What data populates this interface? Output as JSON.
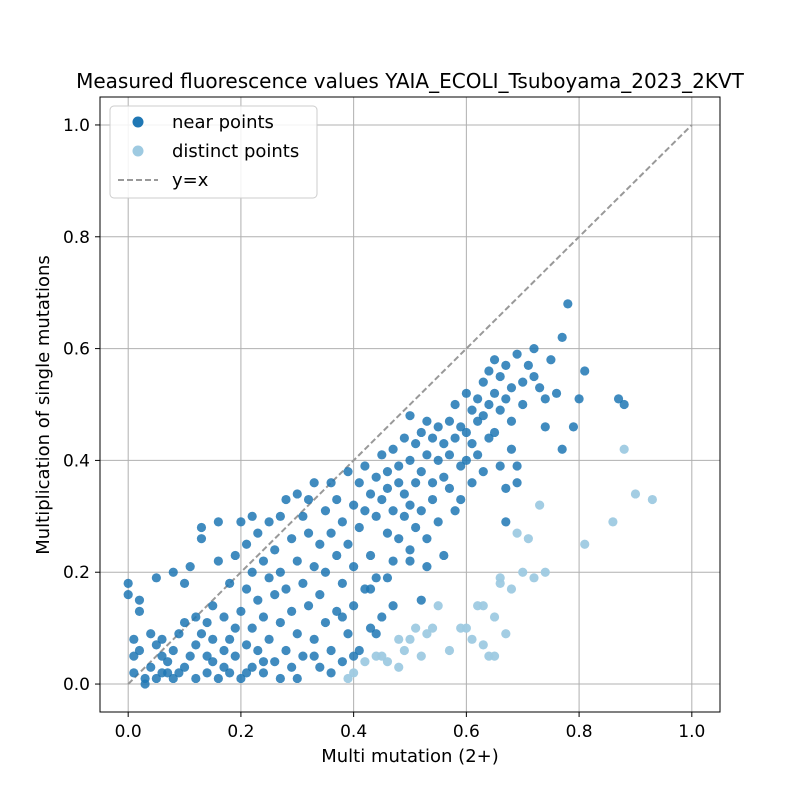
{
  "chart_data": {
    "type": "scatter",
    "title": "Measured fluorescence values YAIA_ECOLI_Tsuboyama_2023_2KVT",
    "xlabel": "Multi mutation (2+)",
    "ylabel": "Multiplication of single mutations",
    "xlim": [
      -0.05,
      1.05
    ],
    "ylim": [
      -0.05,
      1.05
    ],
    "xticks": [
      "0.0",
      "0.2",
      "0.4",
      "0.6",
      "0.8",
      "1.0"
    ],
    "yticks": [
      "0.0",
      "0.2",
      "0.4",
      "0.6",
      "0.8",
      "1.0"
    ],
    "grid": true,
    "legend_position": "top-left",
    "reference_line": {
      "name": "y=x",
      "color": "#999999",
      "style": "dashed"
    },
    "series": [
      {
        "name": "near points",
        "color": "#1f77b4",
        "points": [
          [
            0.0,
            0.18
          ],
          [
            0.0,
            0.16
          ],
          [
            0.01,
            0.08
          ],
          [
            0.01,
            0.02
          ],
          [
            0.01,
            0.05
          ],
          [
            0.02,
            0.13
          ],
          [
            0.02,
            0.15
          ],
          [
            0.02,
            0.06
          ],
          [
            0.03,
            0.01
          ],
          [
            0.03,
            0.0
          ],
          [
            0.04,
            0.09
          ],
          [
            0.04,
            0.03
          ],
          [
            0.05,
            0.19
          ],
          [
            0.05,
            0.07
          ],
          [
            0.05,
            0.01
          ],
          [
            0.06,
            0.05
          ],
          [
            0.06,
            0.08
          ],
          [
            0.06,
            0.02
          ],
          [
            0.07,
            0.02
          ],
          [
            0.07,
            0.04
          ],
          [
            0.08,
            0.01
          ],
          [
            0.08,
            0.2
          ],
          [
            0.08,
            0.06
          ],
          [
            0.09,
            0.09
          ],
          [
            0.09,
            0.02
          ],
          [
            0.1,
            0.18
          ],
          [
            0.1,
            0.11
          ],
          [
            0.1,
            0.03
          ],
          [
            0.11,
            0.05
          ],
          [
            0.11,
            0.21
          ],
          [
            0.12,
            0.12
          ],
          [
            0.12,
            0.01
          ],
          [
            0.12,
            0.07
          ],
          [
            0.13,
            0.28
          ],
          [
            0.13,
            0.26
          ],
          [
            0.13,
            0.09
          ],
          [
            0.14,
            0.02
          ],
          [
            0.14,
            0.05
          ],
          [
            0.14,
            0.11
          ],
          [
            0.15,
            0.14
          ],
          [
            0.15,
            0.04
          ],
          [
            0.15,
            0.08
          ],
          [
            0.16,
            0.22
          ],
          [
            0.16,
            0.29
          ],
          [
            0.16,
            0.01
          ],
          [
            0.17,
            0.06
          ],
          [
            0.17,
            0.12
          ],
          [
            0.17,
            0.03
          ],
          [
            0.18,
            0.08
          ],
          [
            0.18,
            0.18
          ],
          [
            0.18,
            0.02
          ],
          [
            0.19,
            0.23
          ],
          [
            0.19,
            0.1
          ],
          [
            0.19,
            0.05
          ],
          [
            0.2,
            0.29
          ],
          [
            0.2,
            0.13
          ],
          [
            0.2,
            0.01
          ],
          [
            0.21,
            0.17
          ],
          [
            0.21,
            0.07
          ],
          [
            0.21,
            0.25
          ],
          [
            0.22,
            0.3
          ],
          [
            0.22,
            0.2
          ],
          [
            0.22,
            0.1
          ],
          [
            0.22,
            0.03
          ],
          [
            0.23,
            0.27
          ],
          [
            0.23,
            0.15
          ],
          [
            0.23,
            0.06
          ],
          [
            0.24,
            0.22
          ],
          [
            0.24,
            0.12
          ],
          [
            0.24,
            0.02
          ],
          [
            0.25,
            0.19
          ],
          [
            0.25,
            0.29
          ],
          [
            0.25,
            0.08
          ],
          [
            0.26,
            0.16
          ],
          [
            0.26,
            0.24
          ],
          [
            0.26,
            0.04
          ],
          [
            0.27,
            0.3
          ],
          [
            0.27,
            0.11
          ],
          [
            0.27,
            0.2
          ],
          [
            0.28,
            0.33
          ],
          [
            0.28,
            0.06
          ],
          [
            0.28,
            0.17
          ],
          [
            0.29,
            0.26
          ],
          [
            0.29,
            0.13
          ],
          [
            0.29,
            0.03
          ],
          [
            0.3,
            0.34
          ],
          [
            0.3,
            0.22
          ],
          [
            0.3,
            0.09
          ],
          [
            0.31,
            0.3
          ],
          [
            0.31,
            0.18
          ],
          [
            0.31,
            0.05
          ],
          [
            0.32,
            0.27
          ],
          [
            0.32,
            0.14
          ],
          [
            0.32,
            0.33
          ],
          [
            0.33,
            0.36
          ],
          [
            0.33,
            0.21
          ],
          [
            0.33,
            0.08
          ],
          [
            0.34,
            0.25
          ],
          [
            0.34,
            0.16
          ],
          [
            0.34,
            0.03
          ],
          [
            0.35,
            0.31
          ],
          [
            0.35,
            0.2
          ],
          [
            0.35,
            0.11
          ],
          [
            0.36,
            0.36
          ],
          [
            0.36,
            0.27
          ],
          [
            0.36,
            0.06
          ],
          [
            0.37,
            0.23
          ],
          [
            0.37,
            0.33
          ],
          [
            0.37,
            0.13
          ],
          [
            0.38,
            0.29
          ],
          [
            0.38,
            0.18
          ],
          [
            0.38,
            0.04
          ],
          [
            0.39,
            0.38
          ],
          [
            0.39,
            0.25
          ],
          [
            0.39,
            0.09
          ],
          [
            0.4,
            0.32
          ],
          [
            0.4,
            0.21
          ],
          [
            0.4,
            0.14
          ],
          [
            0.41,
            0.36
          ],
          [
            0.41,
            0.28
          ],
          [
            0.41,
            0.06
          ],
          [
            0.42,
            0.39
          ],
          [
            0.42,
            0.31
          ],
          [
            0.42,
            0.17
          ],
          [
            0.43,
            0.34
          ],
          [
            0.43,
            0.23
          ],
          [
            0.43,
            0.1
          ],
          [
            0.44,
            0.37
          ],
          [
            0.44,
            0.3
          ],
          [
            0.44,
            0.19
          ],
          [
            0.45,
            0.41
          ],
          [
            0.45,
            0.33
          ],
          [
            0.45,
            0.12
          ],
          [
            0.46,
            0.38
          ],
          [
            0.46,
            0.27
          ],
          [
            0.46,
            0.35
          ],
          [
            0.47,
            0.42
          ],
          [
            0.47,
            0.31
          ],
          [
            0.47,
            0.22
          ],
          [
            0.48,
            0.39
          ],
          [
            0.48,
            0.36
          ],
          [
            0.48,
            0.26
          ],
          [
            0.49,
            0.44
          ],
          [
            0.49,
            0.34
          ],
          [
            0.49,
            0.3
          ],
          [
            0.5,
            0.48
          ],
          [
            0.5,
            0.4
          ],
          [
            0.5,
            0.32
          ],
          [
            0.5,
            0.24
          ],
          [
            0.51,
            0.43
          ],
          [
            0.51,
            0.36
          ],
          [
            0.51,
            0.28
          ],
          [
            0.52,
            0.45
          ],
          [
            0.52,
            0.38
          ],
          [
            0.52,
            0.31
          ],
          [
            0.53,
            0.47
          ],
          [
            0.53,
            0.41
          ],
          [
            0.53,
            0.26
          ],
          [
            0.54,
            0.44
          ],
          [
            0.54,
            0.36
          ],
          [
            0.54,
            0.33
          ],
          [
            0.55,
            0.46
          ],
          [
            0.55,
            0.4
          ],
          [
            0.55,
            0.29
          ],
          [
            0.56,
            0.43
          ],
          [
            0.56,
            0.37
          ],
          [
            0.56,
            0.23
          ],
          [
            0.57,
            0.47
          ],
          [
            0.57,
            0.41
          ],
          [
            0.57,
            0.35
          ],
          [
            0.58,
            0.5
          ],
          [
            0.58,
            0.44
          ],
          [
            0.58,
            0.31
          ],
          [
            0.59,
            0.46
          ],
          [
            0.59,
            0.39
          ],
          [
            0.59,
            0.33
          ],
          [
            0.6,
            0.52
          ],
          [
            0.6,
            0.45
          ],
          [
            0.6,
            0.4
          ],
          [
            0.61,
            0.49
          ],
          [
            0.61,
            0.43
          ],
          [
            0.61,
            0.36
          ],
          [
            0.62,
            0.51
          ],
          [
            0.62,
            0.47
          ],
          [
            0.62,
            0.41
          ],
          [
            0.63,
            0.54
          ],
          [
            0.63,
            0.48
          ],
          [
            0.63,
            0.38
          ],
          [
            0.64,
            0.56
          ],
          [
            0.64,
            0.5
          ],
          [
            0.64,
            0.44
          ],
          [
            0.65,
            0.58
          ],
          [
            0.65,
            0.52
          ],
          [
            0.65,
            0.45
          ],
          [
            0.66,
            0.55
          ],
          [
            0.66,
            0.49
          ],
          [
            0.66,
            0.39
          ],
          [
            0.67,
            0.57
          ],
          [
            0.67,
            0.51
          ],
          [
            0.67,
            0.35
          ],
          [
            0.68,
            0.53
          ],
          [
            0.68,
            0.47
          ],
          [
            0.68,
            0.42
          ],
          [
            0.69,
            0.59
          ],
          [
            0.69,
            0.36
          ],
          [
            0.7,
            0.54
          ],
          [
            0.7,
            0.5
          ],
          [
            0.71,
            0.57
          ],
          [
            0.72,
            0.6
          ],
          [
            0.72,
            0.55
          ],
          [
            0.73,
            0.53
          ],
          [
            0.74,
            0.51
          ],
          [
            0.74,
            0.46
          ],
          [
            0.75,
            0.58
          ],
          [
            0.76,
            0.52
          ],
          [
            0.77,
            0.62
          ],
          [
            0.77,
            0.42
          ],
          [
            0.78,
            0.68
          ],
          [
            0.79,
            0.46
          ],
          [
            0.8,
            0.51
          ],
          [
            0.81,
            0.56
          ],
          [
            0.87,
            0.51
          ],
          [
            0.88,
            0.5
          ],
          [
            0.67,
            0.29
          ],
          [
            0.69,
            0.39
          ],
          [
            0.5,
            0.22
          ],
          [
            0.46,
            0.19
          ],
          [
            0.43,
            0.17
          ],
          [
            0.47,
            0.14
          ],
          [
            0.44,
            0.09
          ],
          [
            0.38,
            0.12
          ],
          [
            0.4,
            0.05
          ],
          [
            0.36,
            0.02
          ],
          [
            0.33,
            0.05
          ],
          [
            0.3,
            0.01
          ],
          [
            0.27,
            0.01
          ],
          [
            0.24,
            0.04
          ],
          [
            0.21,
            0.02
          ],
          [
            0.53,
            0.21
          ],
          [
            0.52,
            0.15
          ]
        ]
      },
      {
        "name": "distinct points",
        "color": "#9ecae1",
        "points": [
          [
            0.39,
            0.01
          ],
          [
            0.4,
            0.02
          ],
          [
            0.42,
            0.04
          ],
          [
            0.44,
            0.05
          ],
          [
            0.46,
            0.04
          ],
          [
            0.48,
            0.03
          ],
          [
            0.49,
            0.06
          ],
          [
            0.5,
            0.08
          ],
          [
            0.51,
            0.1
          ],
          [
            0.52,
            0.05
          ],
          [
            0.53,
            0.09
          ],
          [
            0.55,
            0.14
          ],
          [
            0.57,
            0.06
          ],
          [
            0.6,
            0.1
          ],
          [
            0.61,
            0.08
          ],
          [
            0.62,
            0.14
          ],
          [
            0.63,
            0.07
          ],
          [
            0.64,
            0.05
          ],
          [
            0.65,
            0.12
          ],
          [
            0.66,
            0.18
          ],
          [
            0.67,
            0.09
          ],
          [
            0.68,
            0.17
          ],
          [
            0.69,
            0.27
          ],
          [
            0.7,
            0.2
          ],
          [
            0.71,
            0.26
          ],
          [
            0.72,
            0.19
          ],
          [
            0.73,
            0.32
          ],
          [
            0.74,
            0.2
          ],
          [
            0.81,
            0.25
          ],
          [
            0.86,
            0.29
          ],
          [
            0.88,
            0.42
          ],
          [
            0.9,
            0.34
          ],
          [
            0.93,
            0.33
          ],
          [
            0.65,
            0.05
          ],
          [
            0.66,
            0.19
          ],
          [
            0.63,
            0.14
          ],
          [
            0.59,
            0.1
          ],
          [
            0.54,
            0.1
          ],
          [
            0.45,
            0.05
          ],
          [
            0.48,
            0.08
          ]
        ]
      }
    ]
  }
}
